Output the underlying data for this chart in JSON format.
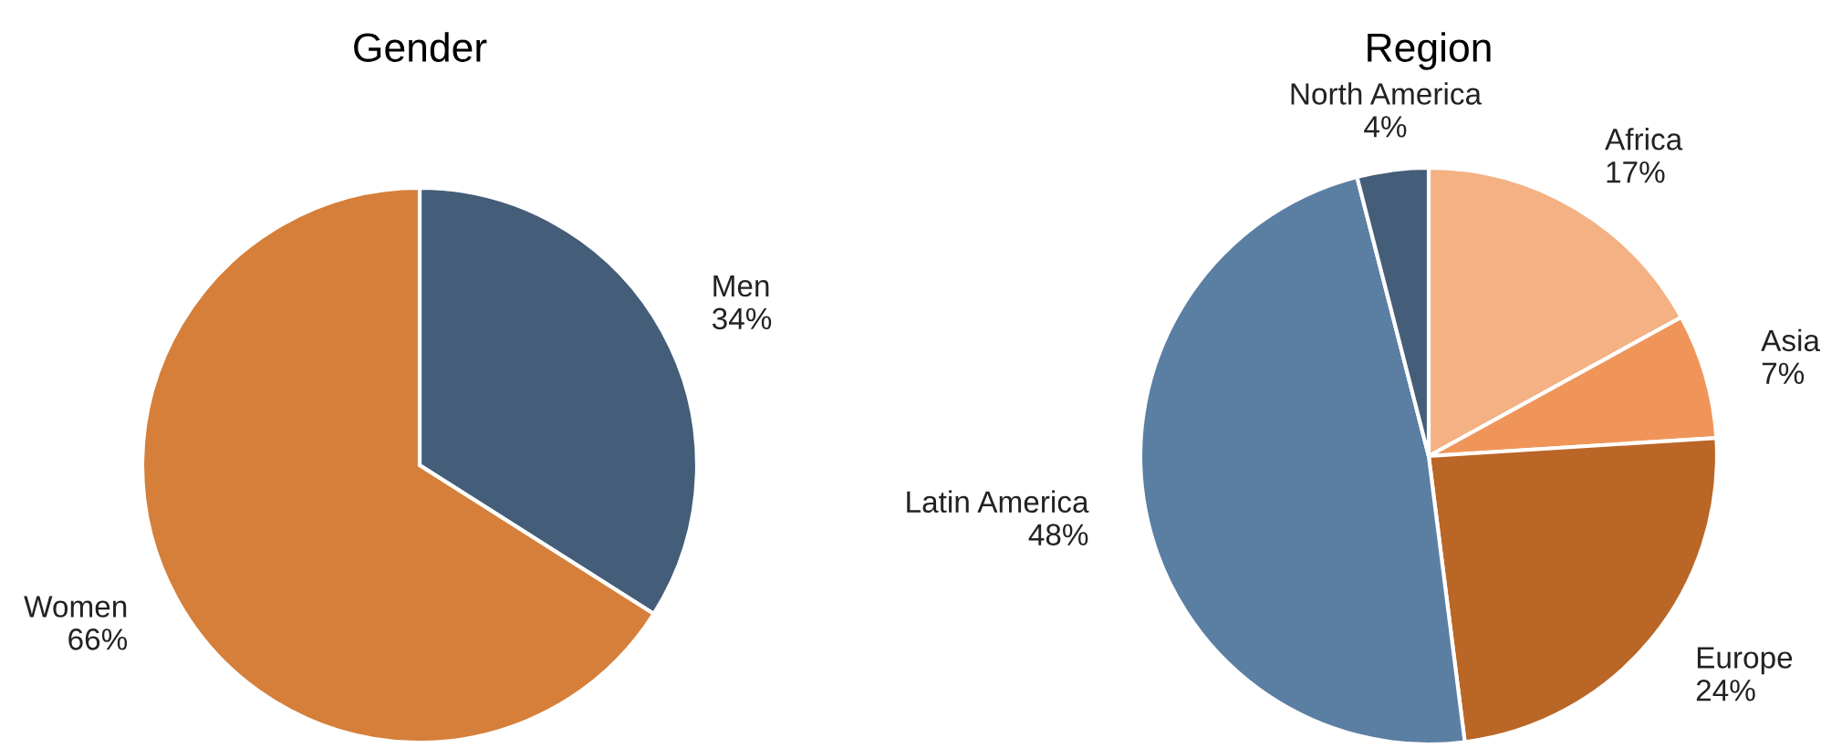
{
  "chart_data": [
    {
      "type": "pie",
      "title": "Gender",
      "categories": [
        "Men",
        "Women"
      ],
      "values": [
        34,
        66
      ],
      "value_labels": [
        "34%",
        "66%"
      ],
      "colors": [
        "#445d78",
        "#d57f3a"
      ],
      "legend": false
    },
    {
      "type": "pie",
      "title": "Region",
      "categories": [
        "Africa",
        "Asia",
        "Europe",
        "Latin America",
        "North America"
      ],
      "values": [
        17,
        7,
        24,
        48,
        4
      ],
      "value_labels": [
        "17%",
        "7%",
        "24%",
        "48%",
        "4%"
      ],
      "colors": [
        "#f4b183",
        "#f0955a",
        "#b96627",
        "#5b7ea3",
        "#445d78"
      ],
      "legend": false
    }
  ]
}
